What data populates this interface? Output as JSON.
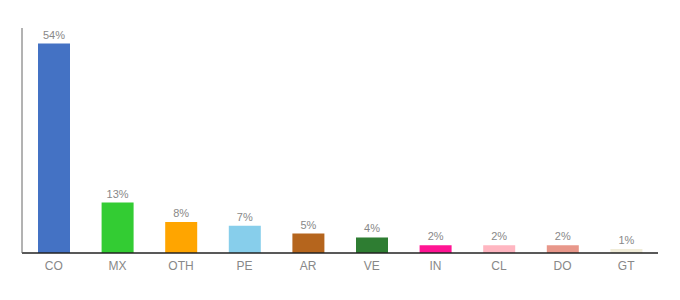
{
  "chart_data": {
    "type": "bar",
    "categories": [
      "CO",
      "MX",
      "OTH",
      "PE",
      "AR",
      "VE",
      "IN",
      "CL",
      "DO",
      "GT"
    ],
    "values": [
      54,
      13,
      8,
      7,
      5,
      4,
      2,
      2,
      2,
      1
    ],
    "value_labels": [
      "54%",
      "13%",
      "8%",
      "7%",
      "5%",
      "4%",
      "2%",
      "2%",
      "2%",
      "1%"
    ],
    "data_labels": true,
    "colors": [
      "#4472C4",
      "#33CC33",
      "#FFA500",
      "#87CEEB",
      "#B5651D",
      "#2E7D32",
      "#FF1493",
      "#FFB6C1",
      "#E8978A",
      "#F0ECD8"
    ],
    "ylim": [
      0,
      58
    ],
    "tick_labels": "x",
    "grid": false
  }
}
